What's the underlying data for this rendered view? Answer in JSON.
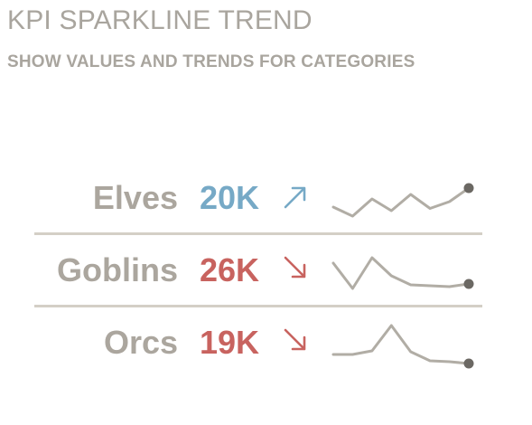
{
  "title": "KPI SPARKLINE TREND",
  "subtitle": "SHOW VALUES AND TRENDS FOR CATEGORIES",
  "colors": {
    "up": "#76a9c6",
    "down": "#c8635f",
    "label": "#aba69e",
    "line": "#b1ada5",
    "endpoint": "#6b6863",
    "divider": "#d4cfc6"
  },
  "chart_data": {
    "type": "line",
    "title": "KPI SPARKLINE TREND",
    "subtitle": "SHOW VALUES AND TRENDS FOR CATEGORIES",
    "rows": [
      {
        "category": "Elves",
        "value_label": "20K",
        "trend": "up",
        "arrow": "↗",
        "values": [
          30,
          10,
          48,
          22,
          58,
          27,
          42,
          72
        ]
      },
      {
        "category": "Goblins",
        "value_label": "26K",
        "trend": "down",
        "arrow": "↘",
        "values": [
          66,
          10,
          78,
          38,
          18,
          16,
          14,
          20
        ]
      },
      {
        "category": "Orcs",
        "value_label": "19K",
        "trend": "down",
        "arrow": "↘",
        "values": [
          24,
          24,
          32,
          88,
          30,
          10,
          8,
          4
        ]
      }
    ]
  }
}
